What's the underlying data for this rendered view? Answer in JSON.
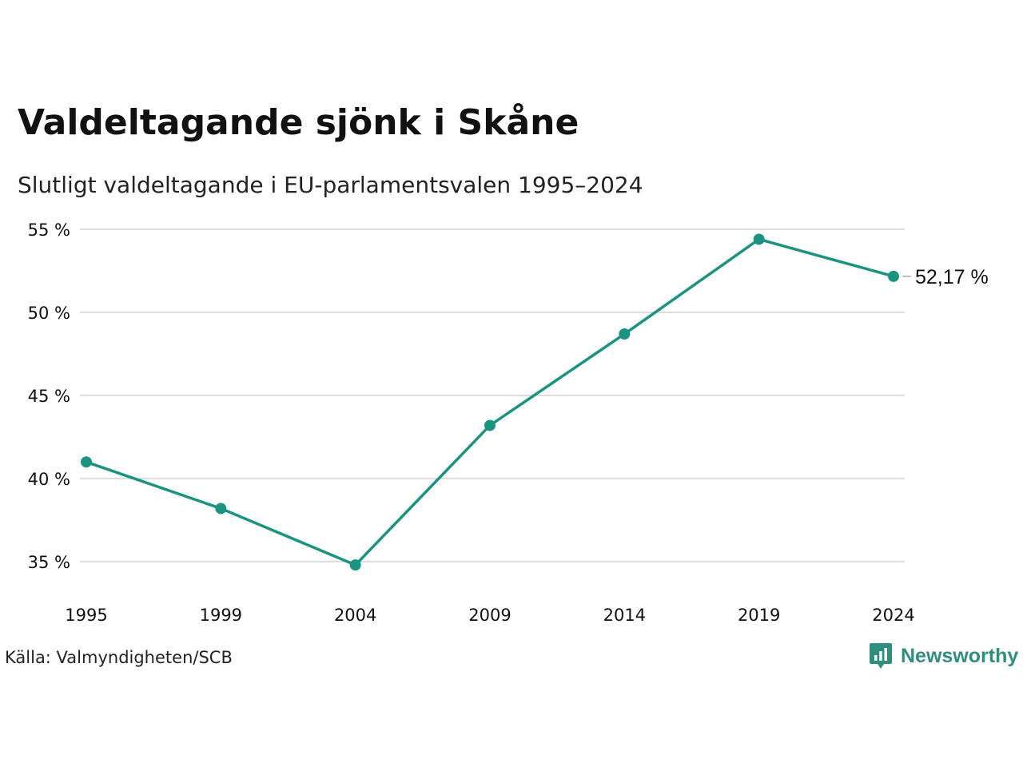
{
  "title": "Valdeltagande sjönk i Skåne",
  "subtitle": "Slutligt valdeltagande i EU-parlamentsvalen 1995–2024",
  "source": "Källa: Valmyndigheten/SCB",
  "brand": {
    "name": "Newsworthy",
    "icon": "newsworthy-logo-icon"
  },
  "colors": {
    "line": "#1a9381",
    "grid": "#dddddd",
    "text": "#111111"
  },
  "chart_data": {
    "type": "line",
    "title": "Valdeltagande sjönk i Skåne",
    "subtitle": "Slutligt valdeltagande i EU-parlamentsvalen 1995–2024",
    "x": [
      1995,
      1999,
      2004,
      2009,
      2014,
      2019,
      2024
    ],
    "x_tick_labels": [
      "1995",
      "1999",
      "2004",
      "2009",
      "2014",
      "2019",
      "2024"
    ],
    "series": [
      {
        "values": [
          41.0,
          38.2,
          34.8,
          43.2,
          48.7,
          54.4,
          52.17
        ]
      }
    ],
    "ylim": [
      35,
      55
    ],
    "y_ticks": [
      35,
      40,
      45,
      50,
      55
    ],
    "y_tick_labels": [
      "35 %",
      "40 %",
      "45 %",
      "50 %",
      "55 %"
    ],
    "end_label": "52,17 %",
    "grid": true,
    "markers": true,
    "legend": "none"
  }
}
